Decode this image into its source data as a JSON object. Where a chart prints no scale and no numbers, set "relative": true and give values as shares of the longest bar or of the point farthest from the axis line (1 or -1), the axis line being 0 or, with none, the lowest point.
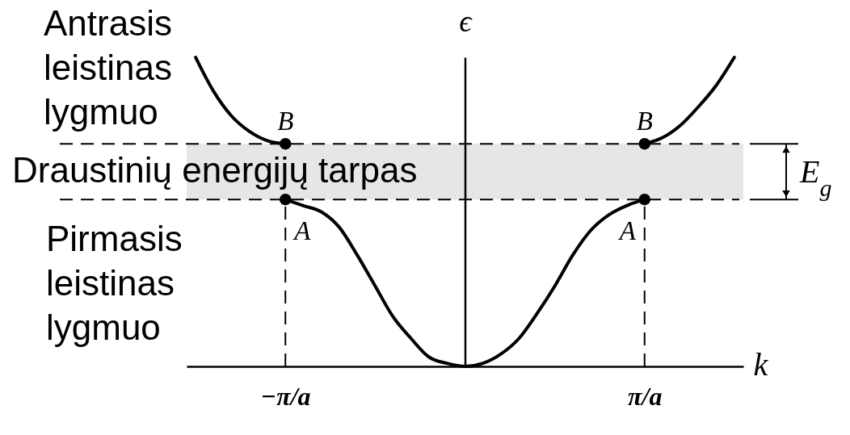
{
  "chart_data": {
    "type": "line",
    "relative": true,
    "xlabel": "k",
    "ylabel": "ϵ",
    "categories": [
      null,
      null,
      null,
      null,
      null,
      "−π/a",
      null,
      null,
      null,
      null,
      null,
      null,
      null,
      null,
      null,
      null,
      null,
      null,
      null,
      null,
      null,
      null,
      null,
      null,
      null,
      "π/a",
      null,
      null,
      null,
      null,
      null
    ],
    "series": [
      {
        "color": "#000000",
        "values": [
          null,
          null,
          null,
          null,
          null,
          0.54,
          0.52,
          0.5,
          0.45,
          0.36,
          0.26,
          0.16,
          0.09,
          0.03,
          0.01,
          0,
          0.01,
          0.04,
          0.09,
          0.17,
          0.26,
          0.36,
          0.44,
          0.49,
          0.52,
          0.54,
          null,
          null,
          null,
          null,
          null
        ]
      },
      {
        "color": "#000000",
        "values": [
          1,
          0.89,
          0.81,
          0.76,
          0.73,
          0.72,
          null,
          null,
          null,
          null,
          null,
          null,
          null,
          null,
          null,
          null,
          null,
          null,
          null,
          null,
          null,
          null,
          null,
          null,
          null,
          null,
          null,
          null,
          null,
          null,
          null
        ]
      },
      {
        "color": "#000000",
        "values": [
          null,
          null,
          null,
          null,
          null,
          null,
          null,
          null,
          null,
          null,
          null,
          null,
          null,
          null,
          null,
          null,
          null,
          null,
          null,
          null,
          null,
          null,
          null,
          null,
          null,
          0.72,
          0.74,
          0.78,
          0.84,
          0.91,
          1
        ]
      },
      {
        "type": "lollipop",
        "color": "#000000",
        "marker": "circle",
        "line_style": "dashed",
        "x": [
          "−π/a",
          "π/a"
        ],
        "values": [
          0.54,
          0.54
        ]
      },
      {
        "type": "scatter",
        "color": "#000000",
        "marker": "circle",
        "x": [
          "−π/a",
          "π/a"
        ],
        "values": [
          0.72,
          0.72
        ]
      }
    ],
    "bands": [
      {
        "axis": "y",
        "from": 0.54,
        "to": 0.72,
        "label": "Draustinių energijų tarpas",
        "color": "#e6e6e6"
      }
    ],
    "ref_lines": [
      {
        "axis": "y",
        "value": 0.54,
        "line_style": "dashed"
      },
      {
        "axis": "y",
        "value": 0.72,
        "line_style": "dashed"
      }
    ],
    "annotations": [
      "Antrasis leistinas lygmuo",
      "Pirmasis leistinas lygmuo",
      {
        "text": "A",
        "x": "−π/a",
        "y": 0.54
      },
      {
        "text": "A",
        "x": "π/a",
        "y": 0.54
      },
      {
        "text": "B",
        "x": "−π/a",
        "y": 0.72
      },
      {
        "text": "B",
        "x": "π/a",
        "y": 0.72
      },
      "E$_{g}$"
    ]
  }
}
